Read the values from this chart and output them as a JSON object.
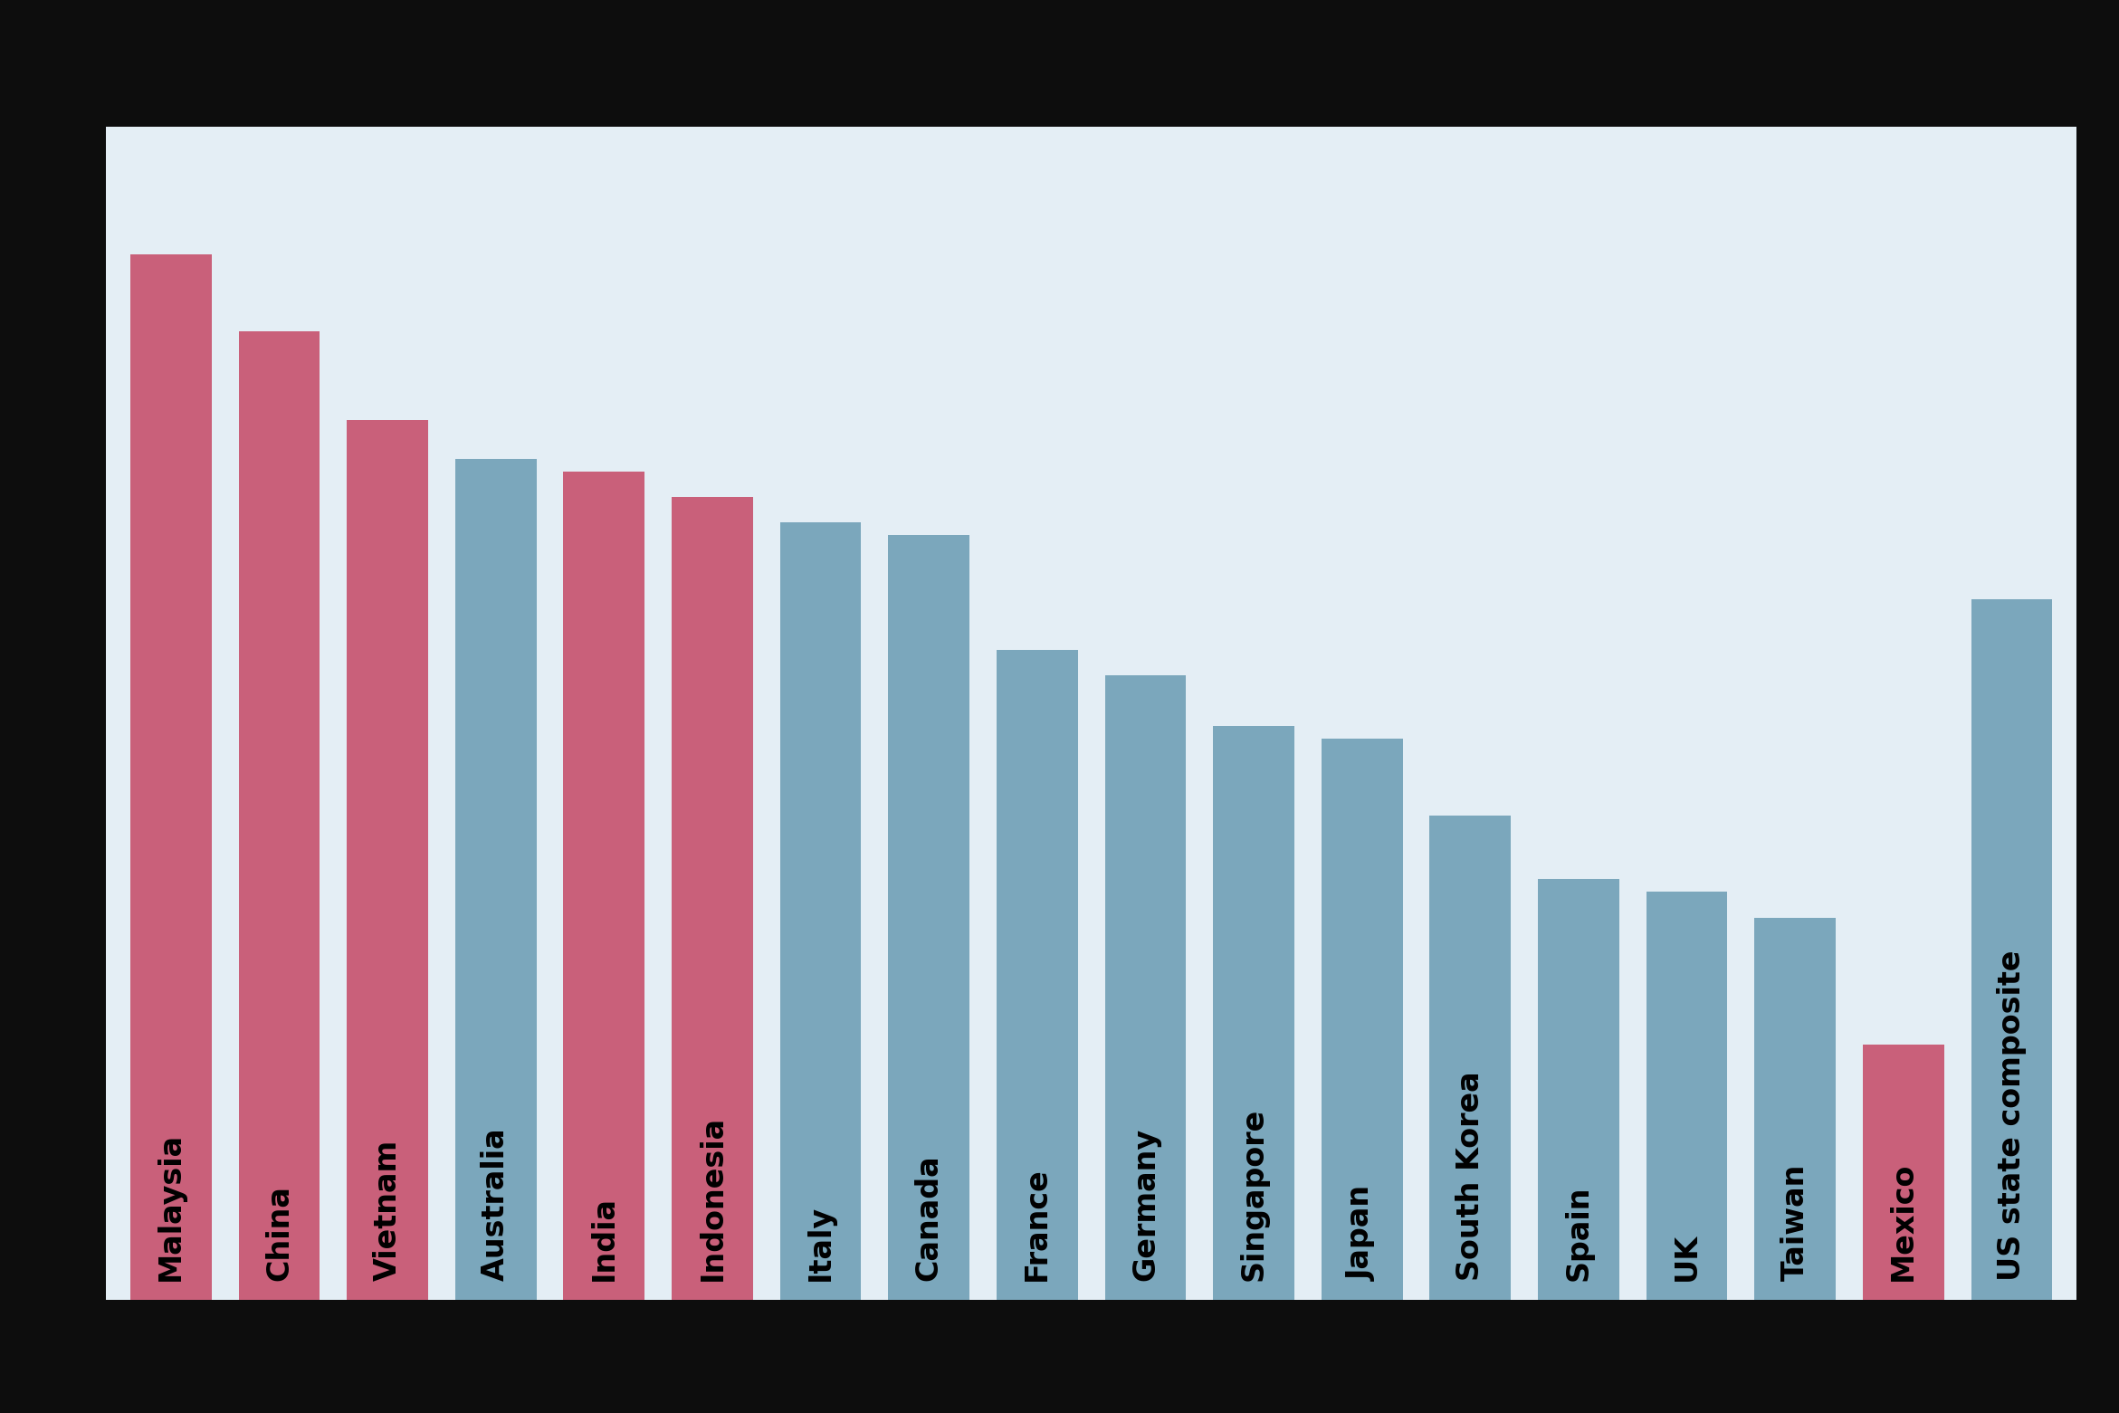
{
  "categories": [
    "Malaysia",
    "China",
    "Vietnam",
    "Australia",
    "India",
    "Indonesia",
    "Italy",
    "Canada",
    "France",
    "Germany",
    "Singapore",
    "Japan",
    "South Korea",
    "Spain",
    "UK",
    "Taiwan",
    "Mexico",
    "US state composite"
  ],
  "values": [
    82,
    76,
    69,
    66,
    65,
    63,
    61,
    60,
    51,
    49,
    45,
    44,
    38,
    33,
    32,
    30,
    20,
    55
  ],
  "colors": [
    "#c9607a",
    "#c9607a",
    "#c9607a",
    "#7ba7bc",
    "#c9607a",
    "#c9607a",
    "#7ba7bc",
    "#7ba7bc",
    "#7ba7bc",
    "#7ba7bc",
    "#7ba7bc",
    "#7ba7bc",
    "#7ba7bc",
    "#7ba7bc",
    "#7ba7bc",
    "#7ba7bc",
    "#c9607a",
    "#7ba7bc"
  ],
  "plot_bg": "#e4eef5",
  "outer_bg": "#0d0d0d",
  "grid_color": "#ffffff",
  "label_fontsize": 24,
  "label_fontweight": "bold",
  "bar_width": 0.75,
  "ylim_max": 92,
  "grid_linewidth": 2.0
}
